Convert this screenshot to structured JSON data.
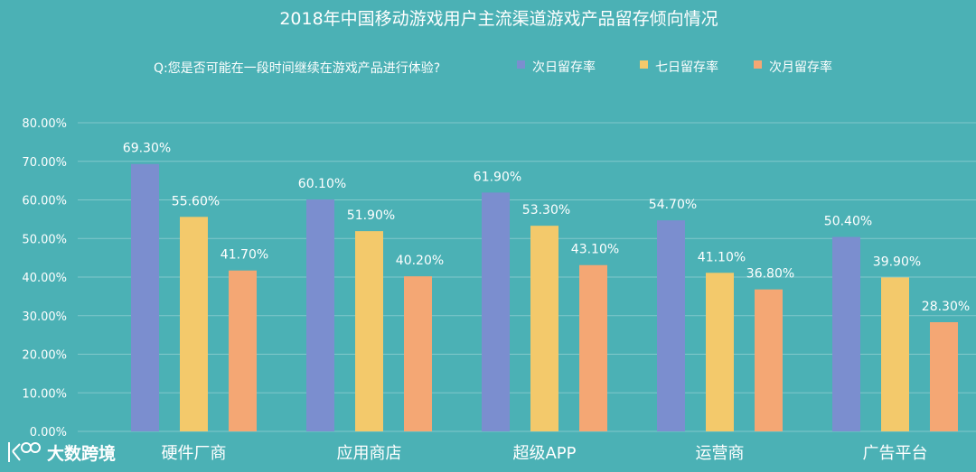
{
  "chart_data": {
    "type": "bar",
    "title": "2018年中国移动游戏用户主流渠道游戏产品留存倾向情况",
    "subtitle": "Q:您是否可能在一段时间继续在游戏产品进行体验?",
    "categories": [
      "硬件厂商",
      "应用商店",
      "超级APP",
      "运营商",
      "广告平台"
    ],
    "series": [
      {
        "name": "次日留存率",
        "color": "#7b8ecf",
        "values": [
          69.3,
          60.1,
          61.9,
          54.7,
          50.4
        ],
        "labels": [
          "69.30%",
          "60.10%",
          "61.90%",
          "54.70%",
          "50.40%"
        ]
      },
      {
        "name": "七日留存率",
        "color": "#f3c96b",
        "values": [
          55.6,
          51.9,
          53.3,
          41.1,
          39.9
        ],
        "labels": [
          "55.60%",
          "51.90%",
          "53.30%",
          "41.10%",
          "39.90%"
        ]
      },
      {
        "name": "次月留存率",
        "color": "#f4a774",
        "values": [
          41.7,
          40.2,
          43.1,
          36.8,
          28.3
        ],
        "labels": [
          "41.70%",
          "40.20%",
          "43.10%",
          "36.80%",
          "28.30%"
        ]
      }
    ],
    "yticks": [
      "0.00%",
      "10.00%",
      "20.00%",
      "30.00%",
      "40.00%",
      "50.00%",
      "60.00%",
      "70.00%",
      "80.00%"
    ],
    "ylim": [
      0,
      80
    ],
    "xlabel": "",
    "ylabel": "",
    "grid": true,
    "legend_position": "top-right"
  },
  "watermark": {
    "text": "大数跨境"
  }
}
